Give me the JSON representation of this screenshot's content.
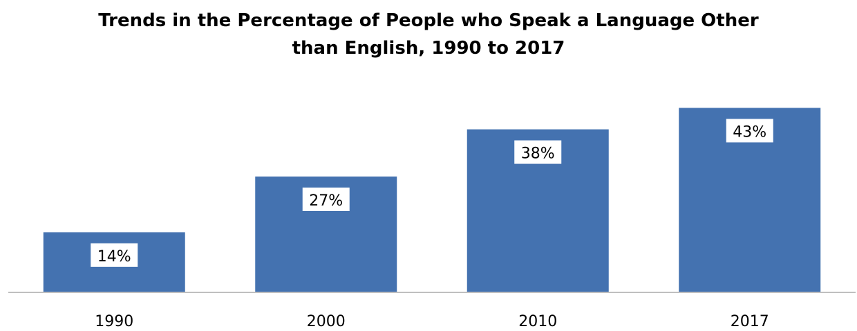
{
  "chart_data": {
    "type": "bar",
    "title_lines": [
      "Trends in the Percentage of People who Speak a Language Other",
      "than English, 1990 to 2017"
    ],
    "categories": [
      "1990",
      "2000",
      "2010",
      "2017"
    ],
    "values": [
      14,
      27,
      38,
      43
    ],
    "data_labels": [
      "14%",
      "27%",
      "38%",
      "43%"
    ],
    "xlabel": "",
    "ylabel": "",
    "ylim": [
      0,
      45
    ],
    "grid": false,
    "legend": "none",
    "bar_color": "#4472B0",
    "label_background": "#ffffff"
  }
}
